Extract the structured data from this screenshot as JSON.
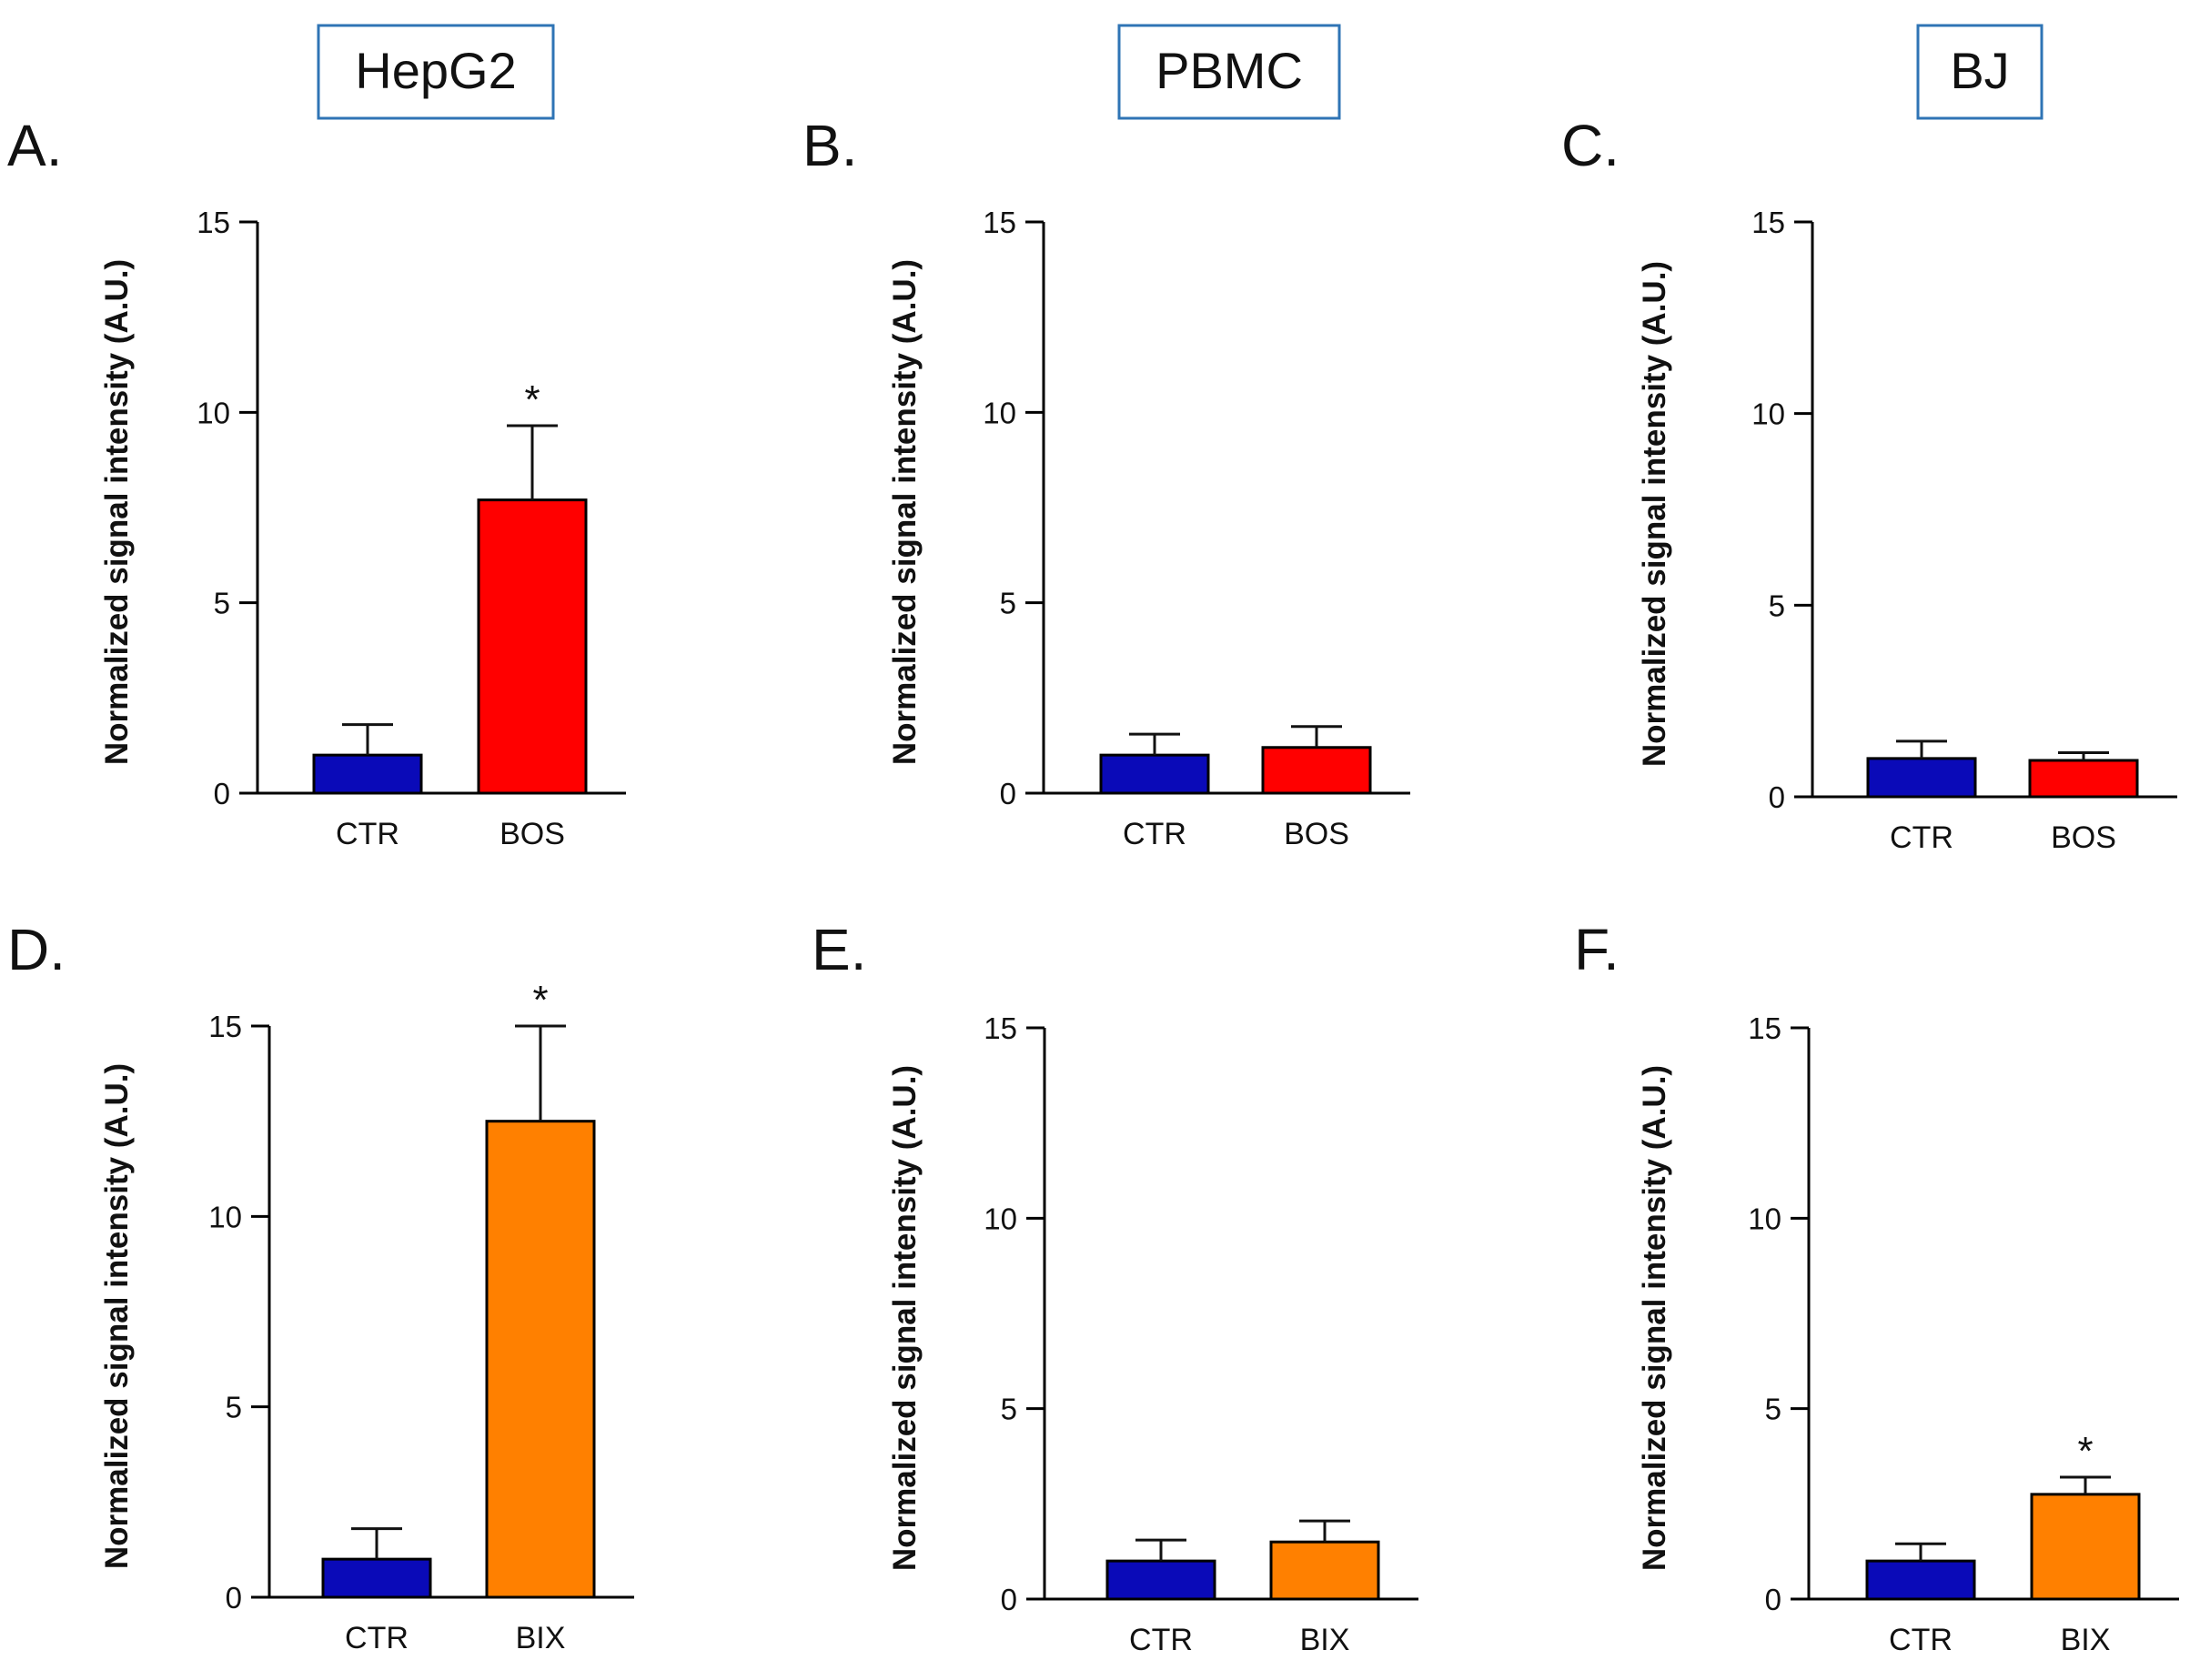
{
  "column_titles": [
    "HepG2",
    "PBMC",
    "BJ"
  ],
  "colors": {
    "CTR": "#0a0ab8",
    "BOS": "#ff0000",
    "BIX": "#ff8000",
    "title_box": "#2f74b5"
  },
  "chart_data": [
    {
      "panel": "A.",
      "type": "bar",
      "cell_line": "HepG2",
      "ylabel": "Normalized signal intensity (A.U.)",
      "ylim": [
        0,
        15
      ],
      "yticks": [
        "0",
        "5",
        "10",
        "15"
      ],
      "categories": [
        "CTR",
        "BOS"
      ],
      "values": [
        1.0,
        7.7
      ],
      "errors": [
        0.8,
        1.95
      ],
      "significance": [
        "",
        "*"
      ]
    },
    {
      "panel": "B.",
      "type": "bar",
      "cell_line": "PBMC",
      "ylabel": "Normalized signal intensity (A.U.)",
      "ylim": [
        0,
        15
      ],
      "yticks": [
        "0",
        "5",
        "10",
        "15"
      ],
      "categories": [
        "CTR",
        "BOS"
      ],
      "values": [
        1.0,
        1.2
      ],
      "errors": [
        0.55,
        0.55
      ],
      "significance": [
        "",
        ""
      ]
    },
    {
      "panel": "C.",
      "type": "bar",
      "cell_line": "BJ",
      "ylabel": "Normalized signal intensity (A.U.)",
      "ylim": [
        0,
        15
      ],
      "yticks": [
        "0",
        "5",
        "10",
        "15"
      ],
      "categories": [
        "CTR",
        "BOS"
      ],
      "values": [
        1.0,
        0.95
      ],
      "errors": [
        0.45,
        0.2
      ],
      "significance": [
        "",
        ""
      ]
    },
    {
      "panel": "D.",
      "type": "bar",
      "cell_line": "HepG2",
      "ylabel": "Normalized signal intensity (A.U.)",
      "ylim": [
        0,
        15
      ],
      "yticks": [
        "0",
        "5",
        "10",
        "15"
      ],
      "categories": [
        "CTR",
        "BIX"
      ],
      "values": [
        1.0,
        12.5
      ],
      "errors": [
        0.8,
        2.5
      ],
      "significance": [
        "",
        "*"
      ]
    },
    {
      "panel": "E.",
      "type": "bar",
      "cell_line": "PBMC",
      "ylabel": "Normalized signal intensity (A.U.)",
      "ylim": [
        0,
        15
      ],
      "yticks": [
        "0",
        "5",
        "10",
        "15"
      ],
      "categories": [
        "CTR",
        "BIX"
      ],
      "values": [
        1.0,
        1.5
      ],
      "errors": [
        0.55,
        0.55
      ],
      "significance": [
        "",
        ""
      ]
    },
    {
      "panel": "F.",
      "type": "bar",
      "cell_line": "BJ",
      "ylabel": "Normalized signal intensity (A.U.)",
      "ylim": [
        0,
        15
      ],
      "yticks": [
        "0",
        "5",
        "10",
        "15"
      ],
      "categories": [
        "CTR",
        "BIX"
      ],
      "values": [
        1.0,
        2.75
      ],
      "errors": [
        0.45,
        0.45
      ],
      "significance": [
        "",
        "*"
      ]
    }
  ]
}
